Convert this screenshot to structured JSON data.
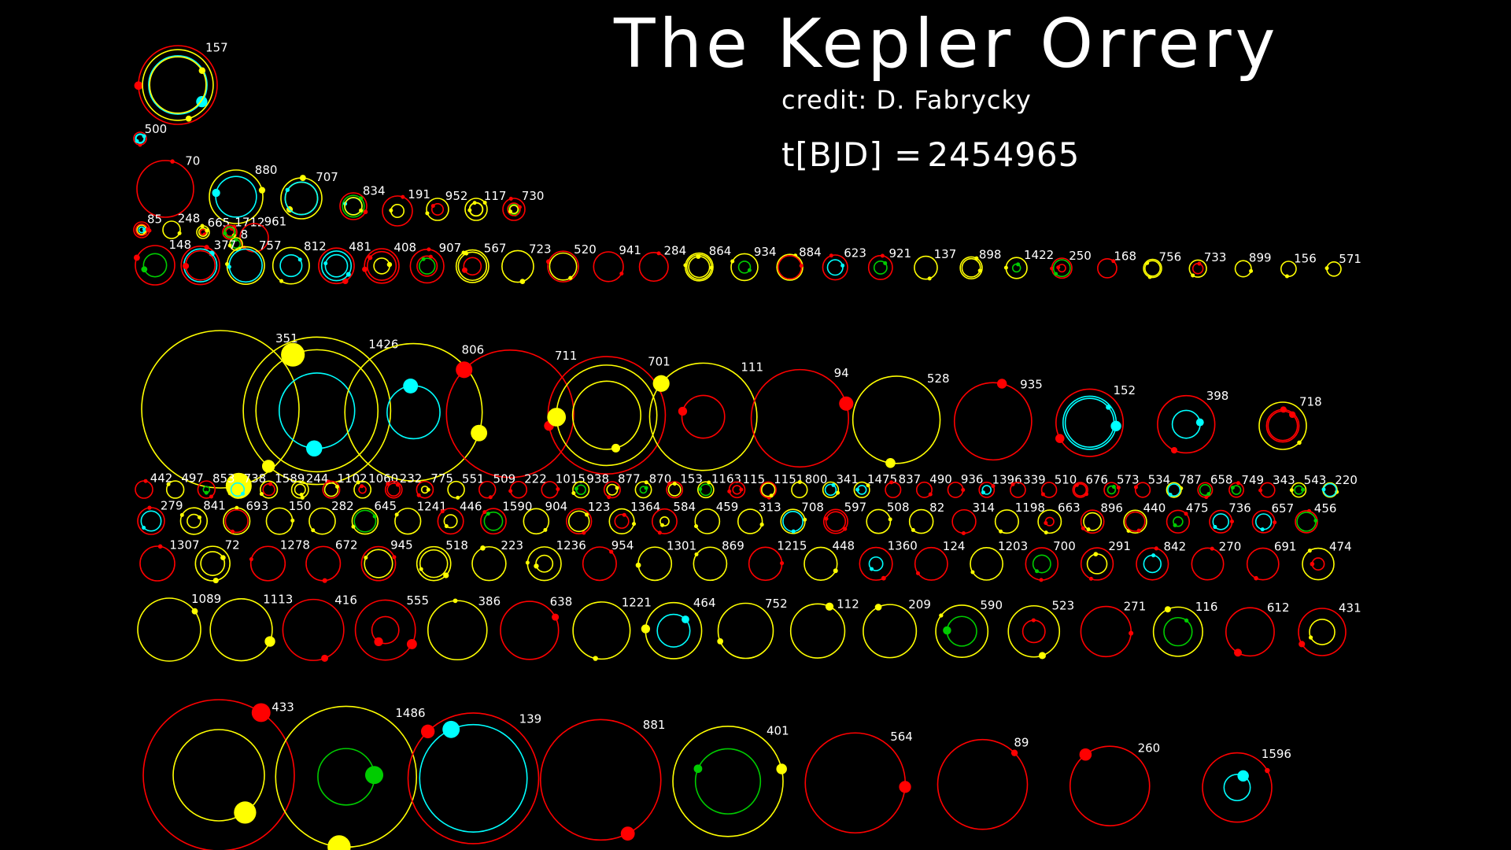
{
  "title": "The Kepler Orrery",
  "credit": "credit: D. Fabrycky",
  "time": {
    "label": "t[BJD] =",
    "value": "2454965"
  },
  "colors": {
    "background": "#000000",
    "orbit_red": "#ff0000",
    "orbit_yellow": "#ffff00",
    "orbit_green": "#00cc00",
    "orbit_cyan": "#00ffff",
    "text": "#ffffff"
  },
  "systems": {
    "top_cluster": [
      "157",
      "500",
      "70",
      "880",
      "707",
      "834",
      "191",
      "952",
      "117",
      "730",
      "85",
      "248",
      "665",
      "1712",
      "961",
      "8"
    ],
    "row_small_orbits": [
      "148",
      "377",
      "757",
      "812",
      "481",
      "408",
      "907",
      "567",
      "723",
      "520",
      "941",
      "284",
      "864",
      "934",
      "884",
      "623",
      "921",
      "137",
      "898",
      "1422",
      "250",
      "168",
      "756",
      "733",
      "899",
      "156",
      "571"
    ],
    "row_large": [
      "351",
      "1426",
      "806",
      "711",
      "701",
      "111",
      "94",
      "528",
      "935",
      "152",
      "398",
      "718"
    ],
    "row_tiny_1": [
      "442",
      "497",
      "853",
      "738",
      "1589",
      "244",
      "1102",
      "1060",
      "232",
      "775",
      "551",
      "509",
      "222",
      "1015",
      "938",
      "877",
      "870",
      "153",
      "1163",
      "115",
      "1151",
      "800",
      "341",
      "1475",
      "837",
      "490",
      "936",
      "1396",
      "339",
      "510",
      "676",
      "573",
      "534",
      "787",
      "658",
      "749",
      "343",
      "543",
      "220"
    ],
    "row_tiny_2": [
      "279",
      "841",
      "693",
      "150",
      "282",
      "645",
      "1241",
      "446",
      "1590",
      "904",
      "123",
      "1364",
      "584",
      "459",
      "313",
      "708",
      "597",
      "508",
      "82",
      "314",
      "1198",
      "663",
      "896",
      "440",
      "475",
      "736",
      "657",
      "456"
    ],
    "row_medium": [
      "1307",
      "72",
      "1278",
      "672",
      "945",
      "518",
      "223",
      "1236",
      "954",
      "1301",
      "869",
      "1215",
      "448",
      "1360",
      "124",
      "1203",
      "700",
      "291",
      "842",
      "270",
      "691",
      "474"
    ],
    "row_medium_2": [
      "1089",
      "1113",
      "416",
      "555",
      "386",
      "638",
      "1221",
      "464",
      "752",
      "112",
      "209",
      "590",
      "523",
      "271",
      "116",
      "612",
      "431"
    ],
    "row_wide": [
      "433",
      "1486",
      "139",
      "881",
      "401",
      "564",
      "89",
      "260",
      "1596"
    ]
  }
}
